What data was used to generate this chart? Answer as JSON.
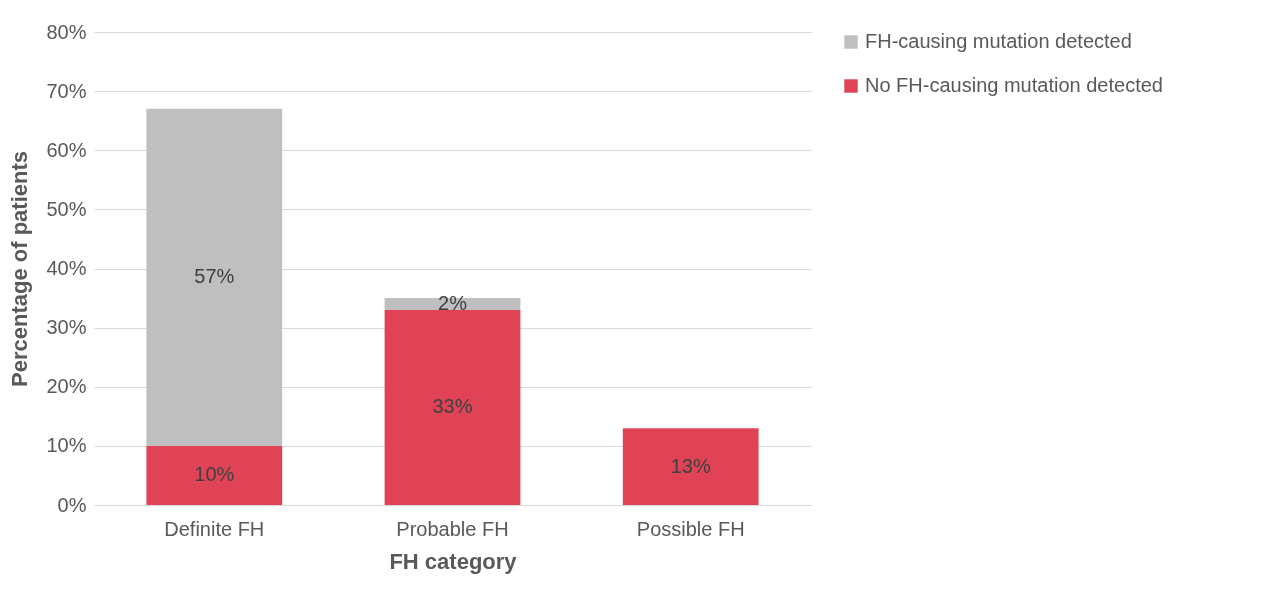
{
  "chart_data": {
    "type": "bar",
    "stacked": true,
    "xlabel": "FH category",
    "ylabel": "Percentage of patients",
    "categories": [
      "Definite FH",
      "Probable FH",
      "Possible FH"
    ],
    "series": [
      {
        "name": "No FH-causing mutation detected",
        "color": "#e04355",
        "values": [
          10,
          33,
          13
        ],
        "value_labels": [
          "10%",
          "33%",
          "13%"
        ]
      },
      {
        "name": "FH-causing mutation detected",
        "color": "#bfbfbf",
        "values": [
          57,
          2,
          null
        ],
        "value_labels": [
          "57%",
          "2%",
          null
        ]
      }
    ],
    "ylim": [
      0,
      80
    ],
    "yticks": [
      {
        "value": 0,
        "label": "0%"
      },
      {
        "value": 10,
        "label": "10%"
      },
      {
        "value": 20,
        "label": "20%"
      },
      {
        "value": 30,
        "label": "30%"
      },
      {
        "value": 40,
        "label": "40%"
      },
      {
        "value": 50,
        "label": "50%"
      },
      {
        "value": 60,
        "label": "60%"
      },
      {
        "value": 70,
        "label": "70%"
      },
      {
        "value": 80,
        "label": "80%"
      }
    ],
    "grid": "y",
    "legend": "right"
  }
}
